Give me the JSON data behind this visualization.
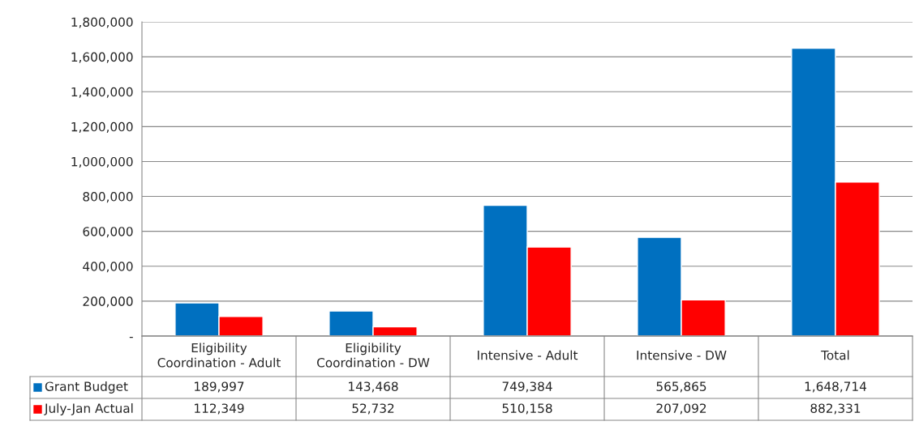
{
  "chart_data": {
    "type": "bar",
    "categories": [
      "Eligibility Coordination - Adult",
      "Eligibility Coordination - DW",
      "Intensive - Adult",
      "Intensive - DW",
      "Total"
    ],
    "series": [
      {
        "name": "Grant Budget",
        "color": "#0070c0",
        "values": [
          189997,
          143468,
          749384,
          565865,
          1648714
        ],
        "value_labels": [
          "189,997",
          "143,468",
          "749,384",
          "565,865",
          "1,648,714"
        ]
      },
      {
        "name": "July-Jan Actual",
        "color": "#ff0000",
        "values": [
          112349,
          52732,
          510158,
          207092,
          882331
        ],
        "value_labels": [
          "112,349",
          "52,732",
          "510,158",
          "207,092",
          "882,331"
        ]
      }
    ],
    "ylim": [
      0,
      1800000
    ],
    "yticks": [
      {
        "value": 0,
        "label": "-"
      },
      {
        "value": 200000,
        "label": "200,000"
      },
      {
        "value": 400000,
        "label": "400,000"
      },
      {
        "value": 600000,
        "label": "600,000"
      },
      {
        "value": 800000,
        "label": "800,000"
      },
      {
        "value": 1000000,
        "label": "1,000,000"
      },
      {
        "value": 1200000,
        "label": "1,200,000"
      },
      {
        "value": 1400000,
        "label": "1,400,000"
      },
      {
        "value": 1600000,
        "label": "1,600,000"
      },
      {
        "value": 1800000,
        "label": "1,800,000"
      }
    ],
    "grid": "y",
    "legend": "bottom"
  }
}
